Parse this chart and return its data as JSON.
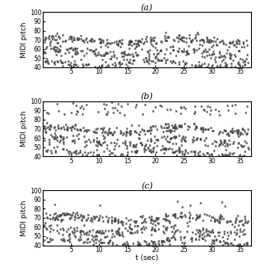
{
  "title_a": "(a)",
  "title_b": "(b)",
  "title_c": "(c)",
  "xlabel": "t (sec)",
  "ylabel": "MIDI pitch",
  "xlim": [
    0,
    37
  ],
  "ylim": [
    40,
    100
  ],
  "xticks": [
    5,
    10,
    15,
    20,
    25,
    30,
    35
  ],
  "yticks": [
    40,
    50,
    60,
    70,
    80,
    90,
    100
  ],
  "figsize": [
    3.27,
    3.42
  ],
  "dpi": 100,
  "color": "#444444",
  "title_fontsize": 8,
  "label_fontsize": 6.5,
  "tick_fontsize": 5.5
}
